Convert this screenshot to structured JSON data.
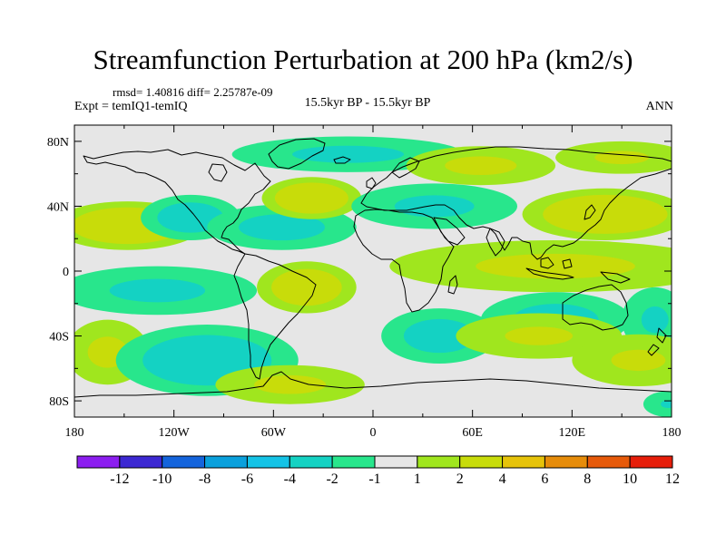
{
  "title": "Streamfunction Perturbation at 200 hPa (km2/s)",
  "stats_line": "rmsd= 1.40816 diff= 2.25787e-09",
  "expt_line": "Expt = temIQ1-temIQ",
  "period_line": "15.5kyr BP - 15.5kyr BP",
  "season": "ANN",
  "lat_ticks": [
    "80N",
    "40N",
    "0",
    "40S",
    "80S"
  ],
  "lon_ticks": [
    "180",
    "120W",
    "60W",
    "0",
    "60E",
    "120E",
    "180"
  ],
  "colorbar": {
    "labels": [
      "-12",
      "-10",
      "-8",
      "-6",
      "-4",
      "-2",
      "-1",
      "1",
      "2",
      "4",
      "6",
      "8",
      "10",
      "12"
    ],
    "colors": [
      "#8c1ef0",
      "#3c28d2",
      "#1464dc",
      "#0aa0dc",
      "#14c3e6",
      "#14d2c3",
      "#28e68c",
      "#e6e6e6",
      "#a0e61e",
      "#c8dc0a",
      "#e6c30a",
      "#e68c0a",
      "#e65a0a",
      "#e61e0a"
    ]
  },
  "chart_data": {
    "type": "map-contour",
    "title": "Streamfunction Perturbation at 200 hPa (km2/s)",
    "units": "km2/s",
    "stats": {
      "rmsd": 1.40816,
      "diff": 2.25787e-09
    },
    "lon_range": [
      -180,
      180
    ],
    "lat_range": [
      -90,
      90
    ],
    "levels": [
      -12,
      -10,
      -8,
      -6,
      -4,
      -2,
      -1,
      1,
      2,
      4,
      6,
      8,
      10,
      12
    ],
    "anomalies": [
      {
        "lon": -148,
        "lat": 28,
        "rx": 45,
        "ry": 15,
        "value": 3.3
      },
      {
        "lon": -110,
        "lat": 33,
        "rx": 30,
        "ry": 14,
        "value": -2.8
      },
      {
        "lon": -55,
        "lat": 27,
        "rx": 45,
        "ry": 14,
        "value": -2.5
      },
      {
        "lon": -37,
        "lat": 45,
        "rx": 30,
        "ry": 13,
        "value": 3.2
      },
      {
        "lon": -15,
        "lat": 72,
        "rx": 70,
        "ry": 11,
        "value": -2.3
      },
      {
        "lon": 65,
        "lat": 65,
        "rx": 45,
        "ry": 12,
        "value": 2.3
      },
      {
        "lon": 37,
        "lat": 40,
        "rx": 50,
        "ry": 14,
        "value": -2.3
      },
      {
        "lon": 140,
        "lat": 35,
        "rx": 50,
        "ry": 16,
        "value": 3.3
      },
      {
        "lon": 150,
        "lat": 70,
        "rx": 40,
        "ry": 10,
        "value": 2.2
      },
      {
        "lon": 110,
        "lat": 3,
        "rx": 100,
        "ry": 16,
        "value": 2.3
      },
      {
        "lon": -40,
        "lat": -10,
        "rx": 30,
        "ry": 16,
        "value": 3.0
      },
      {
        "lon": -130,
        "lat": -12,
        "rx": 60,
        "ry": 15,
        "value": -2.3
      },
      {
        "lon": -160,
        "lat": -50,
        "rx": 25,
        "ry": 20,
        "value": 2.3
      },
      {
        "lon": -100,
        "lat": -55,
        "rx": 55,
        "ry": 22,
        "value": -3.0
      },
      {
        "lon": -50,
        "lat": -70,
        "rx": 45,
        "ry": 12,
        "value": 2.3
      },
      {
        "lon": 40,
        "lat": -40,
        "rx": 35,
        "ry": 17,
        "value": -2.6
      },
      {
        "lon": 110,
        "lat": -30,
        "rx": 45,
        "ry": 17,
        "value": -2.5
      },
      {
        "lon": 170,
        "lat": -30,
        "rx": 20,
        "ry": 20,
        "value": -2.2
      },
      {
        "lon": 100,
        "lat": -40,
        "rx": 50,
        "ry": 14,
        "value": 2.2
      },
      {
        "lon": 160,
        "lat": -55,
        "rx": 40,
        "ry": 16,
        "value": 2.2
      },
      {
        "lon": 178,
        "lat": -82,
        "rx": 15,
        "ry": 8,
        "value": -2.1
      }
    ]
  }
}
